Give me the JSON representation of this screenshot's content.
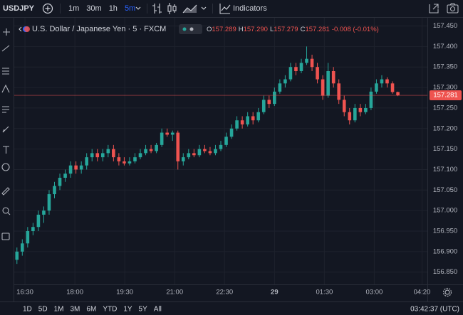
{
  "toolbar": {
    "symbol": "USDJPY",
    "intervals": [
      "1m",
      "30m",
      "1h",
      "5m"
    ],
    "active_interval": 3,
    "indicators": "Indicators"
  },
  "legend": {
    "title": "U.S. Dollar / Japanese Yen · 5 · FXCM",
    "o_label": "O",
    "open": "157.289",
    "h_label": "H",
    "high": "157.290",
    "l_label": "L",
    "low": "157.279",
    "c_label": "C",
    "close": "157.281",
    "change": "-0.008 (-0.01%)"
  },
  "ranges": [
    "1D",
    "5D",
    "1M",
    "3M",
    "6M",
    "YTD",
    "1Y",
    "5Y",
    "All"
  ],
  "clock": "03:42:37 (UTC)",
  "chart_data": {
    "type": "candlestick",
    "up_color": "#26a69a",
    "down_color": "#ef5350",
    "ylim": [
      156.82,
      157.47
    ],
    "yticks": [
      {
        "value": 157.45,
        "label": "157.450"
      },
      {
        "value": 157.4,
        "label": "157.400"
      },
      {
        "value": 157.35,
        "label": "157.350"
      },
      {
        "value": 157.3,
        "label": "157.300"
      },
      {
        "value": 157.25,
        "label": "157.250"
      },
      {
        "value": 157.2,
        "label": "157.200"
      },
      {
        "value": 157.15,
        "label": "157.150"
      },
      {
        "value": 157.1,
        "label": "157.100"
      },
      {
        "value": 157.05,
        "label": "157.050"
      },
      {
        "value": 157,
        "label": "157.000"
      },
      {
        "value": 156.95,
        "label": "156.950"
      },
      {
        "value": 156.9,
        "label": "156.900"
      },
      {
        "value": 156.85,
        "label": "156.850"
      }
    ],
    "xlim": [
      0,
      77
    ],
    "xticks": [
      {
        "value": 2,
        "label": "16:30"
      },
      {
        "value": 11.3,
        "label": "18:00"
      },
      {
        "value": 20.6,
        "label": "19:30"
      },
      {
        "value": 29.9,
        "label": "21:00"
      },
      {
        "value": 39.2,
        "label": "22:30"
      },
      {
        "value": 48.5,
        "label": "29"
      },
      {
        "value": 57.8,
        "label": "01:30"
      },
      {
        "value": 67.1,
        "label": "03:00"
      },
      {
        "value": 76,
        "label": "04:20"
      }
    ],
    "last_price": {
      "value": 157.281,
      "label": "157.281"
    },
    "candles": [
      [
        156.88,
        156.91,
        156.87,
        156.9
      ],
      [
        156.9,
        156.93,
        156.89,
        156.92
      ],
      [
        156.92,
        156.96,
        156.91,
        156.95
      ],
      [
        156.95,
        156.97,
        156.94,
        156.96
      ],
      [
        156.96,
        157.0,
        156.95,
        156.99
      ],
      [
        156.99,
        157.01,
        156.97,
        157.0
      ],
      [
        157.0,
        157.05,
        156.99,
        157.04
      ],
      [
        157.04,
        157.07,
        157.03,
        157.06
      ],
      [
        157.06,
        157.09,
        157.05,
        157.08
      ],
      [
        157.08,
        157.1,
        157.07,
        157.09
      ],
      [
        157.09,
        157.12,
        157.08,
        157.11
      ],
      [
        157.11,
        157.12,
        157.09,
        157.1
      ],
      [
        157.1,
        157.12,
        157.09,
        157.11
      ],
      [
        157.11,
        157.14,
        157.1,
        157.13
      ],
      [
        157.13,
        157.15,
        157.12,
        157.14
      ],
      [
        157.14,
        157.15,
        157.12,
        157.13
      ],
      [
        157.13,
        157.15,
        157.12,
        157.14
      ],
      [
        157.14,
        157.16,
        157.13,
        157.15
      ],
      [
        157.15,
        157.16,
        157.12,
        157.13
      ],
      [
        157.13,
        157.14,
        157.11,
        157.12
      ],
      [
        157.12,
        157.13,
        157.11,
        157.115
      ],
      [
        157.115,
        157.13,
        157.11,
        157.12
      ],
      [
        157.12,
        157.14,
        157.115,
        157.13
      ],
      [
        157.13,
        157.15,
        157.125,
        157.14
      ],
      [
        157.14,
        157.16,
        157.135,
        157.15
      ],
      [
        157.15,
        157.16,
        157.14,
        157.145
      ],
      [
        157.145,
        157.165,
        157.14,
        157.16
      ],
      [
        157.16,
        157.2,
        157.155,
        157.19
      ],
      [
        157.19,
        157.2,
        157.18,
        157.185
      ],
      [
        157.185,
        157.195,
        157.17,
        157.19
      ],
      [
        157.19,
        157.195,
        157.1,
        157.12
      ],
      [
        157.12,
        157.14,
        157.11,
        157.13
      ],
      [
        157.13,
        157.15,
        157.125,
        157.14
      ],
      [
        157.14,
        157.15,
        157.13,
        157.135
      ],
      [
        157.135,
        157.16,
        157.13,
        157.15
      ],
      [
        157.15,
        157.16,
        157.14,
        157.145
      ],
      [
        157.145,
        157.155,
        157.135,
        157.14
      ],
      [
        157.14,
        157.16,
        157.135,
        157.15
      ],
      [
        157.15,
        157.17,
        157.145,
        157.16
      ],
      [
        157.16,
        157.19,
        157.155,
        157.18
      ],
      [
        157.18,
        157.21,
        157.175,
        157.2
      ],
      [
        157.2,
        157.23,
        157.195,
        157.22
      ],
      [
        157.22,
        157.23,
        157.2,
        157.21
      ],
      [
        157.21,
        157.24,
        157.205,
        157.23
      ],
      [
        157.23,
        157.24,
        157.21,
        157.22
      ],
      [
        157.22,
        157.25,
        157.215,
        157.24
      ],
      [
        157.24,
        157.28,
        157.235,
        157.27
      ],
      [
        157.27,
        157.28,
        157.25,
        157.26
      ],
      [
        157.26,
        157.3,
        157.255,
        157.29
      ],
      [
        157.29,
        157.32,
        157.285,
        157.31
      ],
      [
        157.31,
        157.33,
        157.3,
        157.32
      ],
      [
        157.32,
        157.36,
        157.315,
        157.35
      ],
      [
        157.35,
        157.36,
        157.33,
        157.34
      ],
      [
        157.34,
        157.37,
        157.335,
        157.36
      ],
      [
        157.36,
        157.4,
        157.355,
        157.37
      ],
      [
        157.37,
        157.38,
        157.34,
        157.35
      ],
      [
        157.35,
        157.36,
        157.31,
        157.32
      ],
      [
        157.32,
        157.33,
        157.27,
        157.28
      ],
      [
        157.28,
        157.36,
        157.275,
        157.34
      ],
      [
        157.34,
        157.35,
        157.3,
        157.31
      ],
      [
        157.31,
        157.32,
        157.26,
        157.27
      ],
      [
        157.27,
        157.28,
        157.23,
        157.24
      ],
      [
        157.24,
        157.25,
        157.21,
        157.22
      ],
      [
        157.22,
        157.26,
        157.215,
        157.25
      ],
      [
        157.25,
        157.26,
        157.23,
        157.24
      ],
      [
        157.24,
        157.26,
        157.235,
        157.25
      ],
      [
        157.25,
        157.3,
        157.245,
        157.29
      ],
      [
        157.29,
        157.32,
        157.285,
        157.31
      ],
      [
        157.31,
        157.33,
        157.3,
        157.32
      ],
      [
        157.32,
        157.325,
        157.3,
        157.31
      ],
      [
        157.31,
        157.315,
        157.285,
        157.289
      ],
      [
        157.289,
        157.29,
        157.279,
        157.281
      ]
    ]
  }
}
